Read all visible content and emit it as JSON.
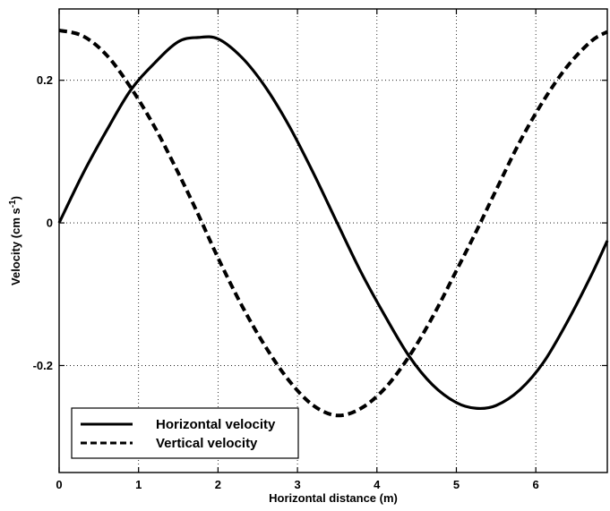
{
  "chart_data": {
    "type": "line",
    "title": "",
    "xlabel": "Horizontal distance (m)",
    "ylabel_main": "Velocity (cm s",
    "ylabel_sup": "-1",
    "ylabel_close": ")",
    "xlim": [
      0,
      6.9
    ],
    "ylim": [
      -0.35,
      0.3
    ],
    "xticks": [
      0,
      1,
      2,
      3,
      4,
      5,
      6
    ],
    "yticks": [
      -0.2,
      0,
      0.2
    ],
    "xtick_labels": [
      "0",
      "1",
      "2",
      "3",
      "4",
      "5",
      "6"
    ],
    "ytick_labels": [
      "-0.2",
      "0",
      "0.2"
    ],
    "grid": true,
    "legend_position": "bottom-left",
    "x": [
      0.0,
      0.3,
      0.6,
      0.9,
      1.2,
      1.5,
      1.75,
      2.0,
      2.3,
      2.6,
      2.9,
      3.2,
      3.5,
      3.8,
      4.1,
      4.4,
      4.7,
      5.0,
      5.25,
      5.5,
      5.8,
      6.1,
      6.4,
      6.7,
      6.9
    ],
    "series": [
      {
        "name": "Horizontal velocity",
        "style": "solid",
        "values": [
          0.0,
          0.069,
          0.13,
          0.186,
          0.224,
          0.254,
          0.26,
          0.258,
          0.232,
          0.19,
          0.135,
          0.07,
          0.0,
          -0.069,
          -0.13,
          -0.186,
          -0.227,
          -0.252,
          -0.26,
          -0.256,
          -0.234,
          -0.195,
          -0.138,
          -0.073,
          -0.025
        ]
      },
      {
        "name": "Vertical velocity",
        "style": "dashed",
        "values": [
          0.27,
          0.262,
          0.235,
          0.19,
          0.135,
          0.07,
          0.012,
          -0.049,
          -0.116,
          -0.174,
          -0.222,
          -0.256,
          -0.27,
          -0.26,
          -0.232,
          -0.188,
          -0.132,
          -0.067,
          -0.012,
          0.046,
          0.114,
          0.172,
          0.22,
          0.255,
          0.268
        ]
      }
    ]
  }
}
